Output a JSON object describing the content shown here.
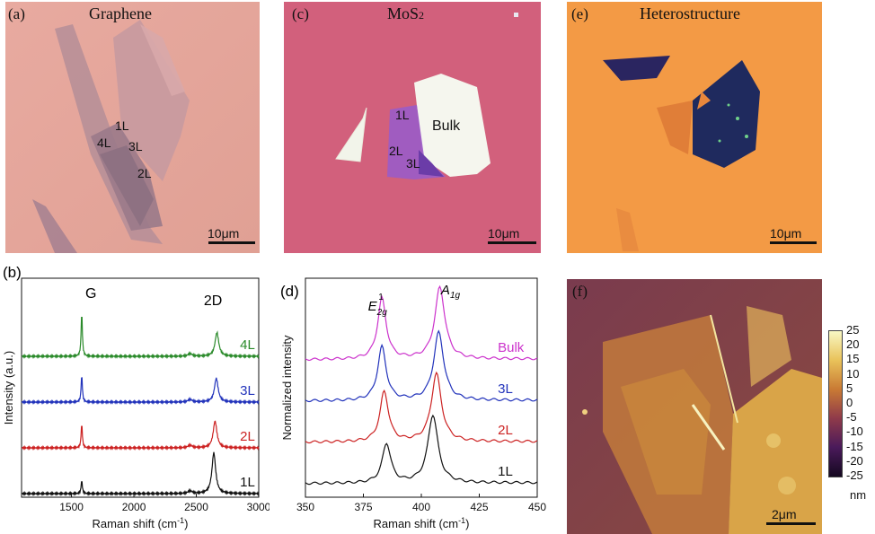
{
  "panels": {
    "a": {
      "letter": "(a)",
      "title": "Graphene",
      "layers": [
        "1L",
        "4L",
        "3L",
        "2L"
      ],
      "scale": "10μm"
    },
    "c": {
      "letter": "(c)",
      "title_main": "MoS",
      "title_sub": "2",
      "layers": [
        "1L",
        "Bulk",
        "2L",
        "3L"
      ],
      "scale": "10μm"
    },
    "e": {
      "letter": "(e)",
      "title": "Heterostructure",
      "scale": "10μm"
    },
    "f": {
      "letter": "(f)",
      "scale": "2μm",
      "colorbar_unit": "nm",
      "colorbar_ticks": [
        "25",
        "20",
        "15",
        "10",
        "5",
        "0",
        "-5",
        "-10",
        "-15",
        "-20",
        "-25"
      ]
    }
  },
  "colors": {
    "graphene_bg": "#e3a59a",
    "mos2_bg": "#d2607c",
    "hetero_bg": "#f39a45",
    "afm_low": "#1a0a2e",
    "afm_mid": "#b95a2c",
    "afm_high": "#f7f7b0"
  },
  "chart_data": [
    {
      "type": "line",
      "panel_letter": "(b)",
      "xlabel": "Raman shift (cm",
      "xlabel_sup": "-1",
      "xlabel_end": ")",
      "ylabel": "Intensity (a.u.)",
      "xlim": [
        1100,
        3000
      ],
      "xticks": [
        "1500",
        "2000",
        "2500",
        "3000"
      ],
      "peak_labels": [
        "G",
        "2D"
      ],
      "series": [
        {
          "name": "4L",
          "color": "#2a8a2a",
          "offset": 3,
          "G": 1.0,
          "twoD": 0.55,
          "twoD_center": 2665
        },
        {
          "name": "3L",
          "color": "#2233bb",
          "offset": 2,
          "G": 0.62,
          "twoD": 0.55,
          "twoD_center": 2660
        },
        {
          "name": "2L",
          "color": "#cc2222",
          "offset": 1,
          "G": 0.55,
          "twoD": 0.62,
          "twoD_center": 2650
        },
        {
          "name": "1L",
          "color": "#111111",
          "offset": 0,
          "G": 0.3,
          "twoD": 0.95,
          "twoD_center": 2640
        }
      ]
    },
    {
      "type": "line",
      "panel_letter": "(d)",
      "xlabel": "Raman shift (cm",
      "xlabel_sup": "-1",
      "xlabel_end": ")",
      "ylabel": "Normalized intensity",
      "xlim": [
        350,
        450
      ],
      "xticks": [
        "350",
        "375",
        "400",
        "425",
        "450"
      ],
      "peak_labels": [
        "E",
        "2g",
        "1",
        "A",
        "1g"
      ],
      "series": [
        {
          "name": "Bulk",
          "color": "#cc33cc",
          "offset": 3,
          "E": 383,
          "A": 408,
          "Eamp": 0.85,
          "Aamp": 1.0
        },
        {
          "name": "3L",
          "color": "#2233bb",
          "offset": 2,
          "E": 383,
          "A": 407.5,
          "Eamp": 0.75,
          "Aamp": 0.95
        },
        {
          "name": "2L",
          "color": "#cc2222",
          "offset": 1,
          "E": 384,
          "A": 406.5,
          "Eamp": 0.7,
          "Aamp": 0.95
        },
        {
          "name": "1L",
          "color": "#111111",
          "offset": 0,
          "E": 385,
          "A": 405,
          "Eamp": 0.55,
          "Aamp": 0.95
        }
      ]
    }
  ]
}
